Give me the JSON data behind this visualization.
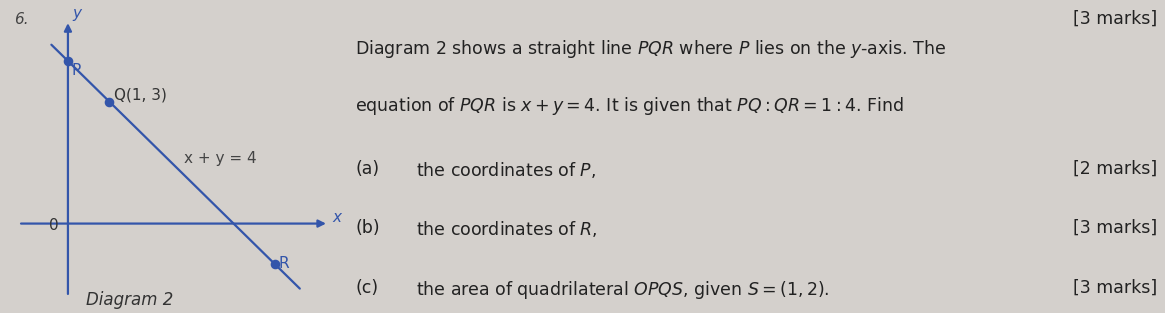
{
  "bg_color": "#d4d0cc",
  "diagram": {
    "P": [
      0,
      4
    ],
    "Q": [
      1,
      3
    ],
    "R": [
      5,
      -1
    ],
    "line_color": "#3355aa",
    "line_width": 1.6,
    "dot_size": 35,
    "label_P": "P",
    "label_Q": "Q(1, 3)",
    "label_R": "R",
    "label_O": "0",
    "label_x": "x",
    "label_y": "y",
    "label_eq": "x + y = 4",
    "label_diag": "Diagram 2",
    "question_num": "6.",
    "xlim": [
      -1.5,
      6.8
    ],
    "ylim": [
      -2.2,
      5.5
    ],
    "ax_xmin": -1.2,
    "ax_xmax": 6.3,
    "ax_ymin": -1.8,
    "ax_ymax": 5.0,
    "line_t_min": -0.08,
    "line_t_max": 1.12
  },
  "text_block": {
    "top_right": "[3 marks]",
    "line1": "Diagram 2 shows a straight line $PQR$ where $P$ lies on the $y$-axis. The",
    "line2": "equation of $PQR$ is $x + y = 4$. It is given that $PQ : QR = 1 : 4$. Find",
    "parts": [
      {
        "label": "(a)",
        "text": "the coordinates of $P$,",
        "marks": "[2 marks]"
      },
      {
        "label": "(b)",
        "text": "the coordinates of $R$,",
        "marks": "[3 marks]"
      },
      {
        "label": "(c)",
        "text": "the area of quadrilateral $OPQS$, given $S = (1, 2)$.",
        "marks": "[3 marks]"
      }
    ],
    "font_size": 12.5,
    "text_color": "#222222"
  }
}
